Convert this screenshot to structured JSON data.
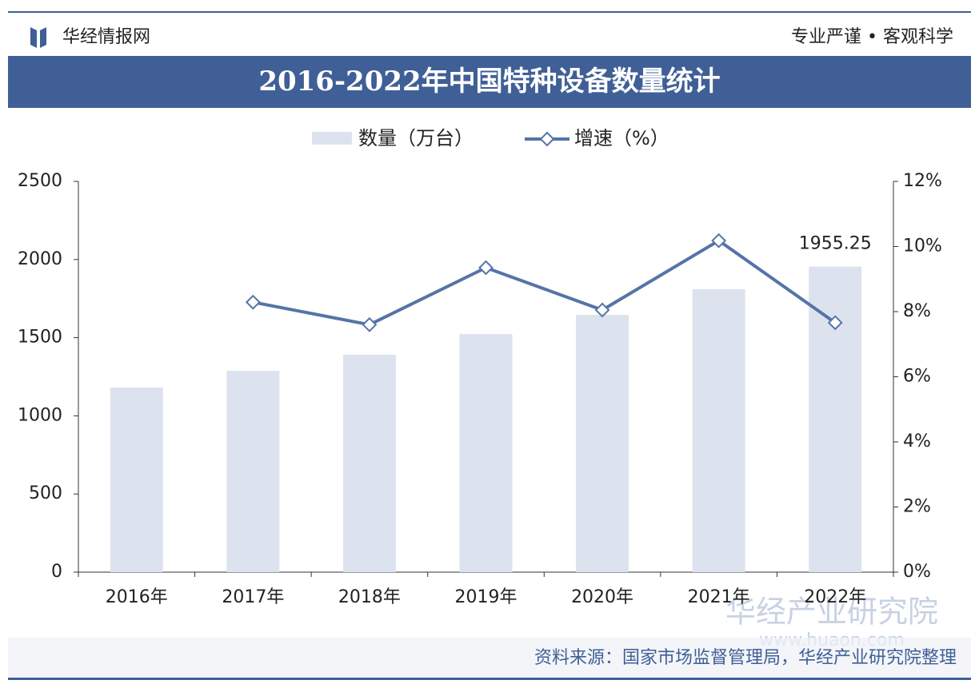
{
  "header": {
    "brand": "华经情报网",
    "slogan": "专业严谨 • 客观科学"
  },
  "chart_data": {
    "type": "bar-line",
    "title": "2016-2022年中国特种设备数量统计",
    "categories": [
      "2016年",
      "2017年",
      "2018年",
      "2019年",
      "2020年",
      "2021年",
      "2022年"
    ],
    "series": [
      {
        "name": "数量（万台）",
        "color": "#dde3ee",
        "type": "bar",
        "values": [
          1181,
          1288,
          1391,
          1523,
          1646,
          1810,
          1955.25
        ],
        "value_labels": [
          null,
          null,
          null,
          null,
          null,
          null,
          "1955.25"
        ]
      },
      {
        "name": "增速（%）",
        "color": "#5574a6",
        "type": "line",
        "axis": "y2",
        "values": [
          null,
          8.29,
          7.6,
          9.35,
          8.05,
          10.18,
          7.66
        ]
      }
    ],
    "ylim": [
      0,
      2500
    ],
    "yticks": [
      0,
      500,
      1000,
      1500,
      2000,
      2500
    ],
    "y2lim": [
      0,
      12
    ],
    "y2ticks": [
      {
        "value": 0,
        "label": "0%"
      },
      {
        "value": 2,
        "label": "2%"
      },
      {
        "value": 4,
        "label": "4%"
      },
      {
        "value": 6,
        "label": "6%"
      },
      {
        "value": 8,
        "label": "8%"
      },
      {
        "value": 10,
        "label": "10%"
      },
      {
        "value": 12,
        "label": "12%"
      }
    ],
    "grid": false
  },
  "watermark": {
    "name": "华经产业研究院",
    "url": "www.huaon.com"
  },
  "footer": {
    "source": "资料来源：国家市场监督管理局，华经产业研究院整理"
  }
}
